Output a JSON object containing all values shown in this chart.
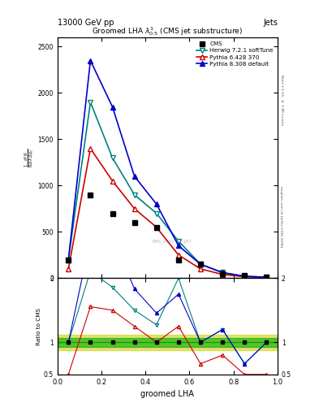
{
  "title": "Groomed LHA $\\lambda^1_{0.5}$ (CMS jet substructure)",
  "header_left": "13000 GeV pp",
  "header_right": "Jets",
  "xlabel": "groomed LHA",
  "ylabel": "$\\frac{1}{\\mathrm{N}} \\frac{d^2N}{d\\,\\lambda\\,d\\,p_T}$",
  "right_label": "mcplots.cern.ch [arXiv:1306.3436]",
  "right_label2": "Rivet 3.1.10, $\\geq$ 3.2M events",
  "watermark": "CMS_2021_..._187",
  "x_bins": [
    0.0,
    0.1,
    0.2,
    0.3,
    0.4,
    0.5,
    0.6,
    0.7,
    0.8,
    0.9,
    1.0
  ],
  "cms_data": [
    200,
    900,
    700,
    600,
    550,
    200,
    150,
    50,
    30,
    10
  ],
  "herwig_data": [
    200,
    1900,
    1300,
    900,
    700,
    400,
    150,
    60,
    20,
    10
  ],
  "pythia6_data": [
    100,
    1400,
    1050,
    750,
    550,
    250,
    100,
    40,
    15,
    5
  ],
  "pythia8_data": [
    200,
    2350,
    1850,
    1100,
    800,
    350,
    150,
    60,
    20,
    10
  ],
  "ylim_main": [
    0,
    2600
  ],
  "ylim_ratio": [
    0.5,
    2.0
  ],
  "color_cms": "#000000",
  "color_herwig": "#008080",
  "color_pythia6": "#cc0000",
  "color_pythia8": "#0000cc",
  "color_band_green": "#00aa00",
  "color_band_yellow": "#cccc00",
  "label_cms": "CMS",
  "label_herwig": "Herwig 7.2.1 softTune",
  "label_pythia6": "Pythia 6.428 370",
  "label_pythia8": "Pythia 8.308 default"
}
